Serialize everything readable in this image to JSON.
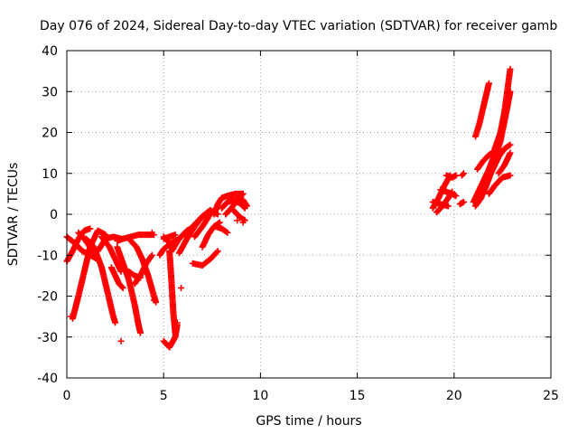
{
  "chart_data": {
    "type": "scatter",
    "title": "Day 076 of 2024, Sidereal Day-to-day VTEC variation (SDTVAR) for receiver gamb",
    "xlabel": "GPS time / hours",
    "ylabel": "SDTVAR / TECUs",
    "xlim": [
      0,
      25
    ],
    "ylim": [
      -40,
      40
    ],
    "xticks": [
      0,
      5,
      10,
      15,
      20,
      25
    ],
    "yticks": [
      -40,
      -30,
      -20,
      -10,
      0,
      10,
      20,
      30,
      40
    ],
    "grid": true,
    "marker": "+",
    "color": "#ff0000",
    "tracks": [
      [
        [
          0.0,
          -11.5
        ],
        [
          0.3,
          -9
        ],
        [
          0.6,
          -6
        ],
        [
          0.9,
          -4
        ],
        [
          1.2,
          -3.5
        ]
      ],
      [
        [
          0.0,
          -5.5
        ],
        [
          0.4,
          -7
        ],
        [
          0.8,
          -9
        ],
        [
          1.2,
          -10
        ],
        [
          1.6,
          -11
        ]
      ],
      [
        [
          0.3,
          -25.5
        ],
        [
          0.6,
          -20
        ],
        [
          0.9,
          -14
        ],
        [
          1.2,
          -8
        ],
        [
          1.6,
          -4
        ],
        [
          2.0,
          -5
        ]
      ],
      [
        [
          0.6,
          -4.5
        ],
        [
          0.9,
          -6
        ],
        [
          1.2,
          -8
        ],
        [
          1.5,
          -10.5
        ]
      ],
      [
        [
          1.0,
          -6
        ],
        [
          1.4,
          -8
        ],
        [
          1.8,
          -13
        ],
        [
          2.1,
          -19
        ],
        [
          2.4,
          -25
        ],
        [
          2.5,
          -26.5
        ]
      ],
      [
        [
          1.6,
          -9
        ],
        [
          2.0,
          -6
        ],
        [
          2.4,
          -5.5
        ],
        [
          2.8,
          -6
        ]
      ],
      [
        [
          1.8,
          -5.5
        ],
        [
          2.2,
          -8
        ],
        [
          2.5,
          -11
        ],
        [
          2.8,
          -14
        ]
      ],
      [
        [
          2.3,
          -13
        ],
        [
          2.5,
          -15
        ],
        [
          2.7,
          -17
        ],
        [
          2.9,
          -18
        ]
      ],
      [
        [
          2.6,
          -8
        ],
        [
          2.9,
          -12
        ],
        [
          3.2,
          -16
        ],
        [
          3.5,
          -22
        ],
        [
          3.7,
          -27
        ],
        [
          3.8,
          -29
        ]
      ],
      [
        [
          2.6,
          -6.5
        ],
        [
          2.9,
          -6
        ],
        [
          3.3,
          -5.5
        ],
        [
          3.7,
          -5
        ],
        [
          4.1,
          -5
        ],
        [
          4.5,
          -5
        ]
      ],
      [
        [
          3.2,
          -14
        ],
        [
          3.5,
          -15
        ],
        [
          3.8,
          -15.5
        ]
      ],
      [
        [
          3.3,
          -6.5
        ],
        [
          3.6,
          -8
        ],
        [
          3.9,
          -11
        ],
        [
          4.2,
          -15
        ],
        [
          4.5,
          -20
        ],
        [
          4.6,
          -21.5
        ]
      ],
      [
        [
          3.5,
          -17
        ],
        [
          3.8,
          -15
        ],
        [
          4.1,
          -12
        ],
        [
          4.4,
          -10
        ]
      ],
      [
        [
          4.8,
          -10
        ],
        [
          5.0,
          -8.5
        ],
        [
          5.4,
          -7
        ],
        [
          5.8,
          -6
        ]
      ],
      [
        [
          5.0,
          -6
        ],
        [
          5.3,
          -5.5
        ],
        [
          5.6,
          -5
        ]
      ],
      [
        [
          5.3,
          -9
        ],
        [
          5.4,
          -16
        ],
        [
          5.5,
          -24
        ],
        [
          5.6,
          -29
        ]
      ],
      [
        [
          5.0,
          -31
        ],
        [
          5.3,
          -32.5
        ],
        [
          5.6,
          -30
        ],
        [
          5.7,
          -27
        ]
      ],
      [
        [
          5.0,
          -5.5
        ],
        [
          5.3,
          -7
        ],
        [
          5.5,
          -8.5
        ]
      ],
      [
        [
          6.1,
          -5
        ],
        [
          6.5,
          -3
        ],
        [
          6.9,
          -1
        ],
        [
          7.3,
          0.5
        ]
      ],
      [
        [
          5.8,
          -9.5
        ],
        [
          6.2,
          -6
        ],
        [
          6.6,
          -3
        ],
        [
          7.0,
          -0.5
        ],
        [
          7.4,
          1
        ],
        [
          7.8,
          0
        ]
      ],
      [
        [
          5.4,
          -9
        ],
        [
          5.8,
          -6
        ],
        [
          6.2,
          -4
        ],
        [
          6.6,
          -3
        ]
      ],
      [
        [
          6.5,
          -12
        ],
        [
          7.0,
          -12.5
        ],
        [
          7.4,
          -11
        ],
        [
          7.8,
          -9
        ]
      ],
      [
        [
          7.0,
          -8
        ],
        [
          7.3,
          -5
        ],
        [
          7.6,
          -3
        ],
        [
          7.9,
          -2
        ]
      ],
      [
        [
          6.6,
          -5.5
        ],
        [
          7.0,
          -3
        ],
        [
          7.4,
          0
        ],
        [
          7.8,
          1.5
        ]
      ],
      [
        [
          7.7,
          -3
        ],
        [
          8.0,
          -3.5
        ],
        [
          8.3,
          -4.5
        ]
      ],
      [
        [
          7.6,
          0
        ],
        [
          7.8,
          2.5
        ],
        [
          8.0,
          4
        ],
        [
          8.3,
          4.5
        ],
        [
          8.7,
          5
        ],
        [
          9.1,
          5
        ]
      ],
      [
        [
          8.0,
          1.5
        ],
        [
          8.3,
          3
        ],
        [
          8.6,
          3.5
        ],
        [
          9.0,
          2.5
        ],
        [
          9.2,
          1.5
        ]
      ],
      [
        [
          8.2,
          0
        ],
        [
          8.5,
          1.5
        ],
        [
          8.8,
          3.5
        ],
        [
          9.1,
          5
        ]
      ],
      [
        [
          8.6,
          1
        ],
        [
          8.9,
          -0.5
        ],
        [
          9.2,
          -1.5
        ]
      ],
      [
        [
          8.8,
          4
        ],
        [
          9.1,
          3.5
        ],
        [
          9.3,
          2
        ]
      ],
      [
        [
          18.9,
          1.5
        ],
        [
          19.2,
          4
        ],
        [
          19.5,
          7
        ],
        [
          19.8,
          9.5
        ]
      ],
      [
        [
          18.9,
          3
        ],
        [
          19.3,
          2.5
        ],
        [
          19.7,
          2
        ]
      ],
      [
        [
          19.1,
          0.5
        ],
        [
          19.4,
          2
        ],
        [
          19.7,
          4
        ],
        [
          19.9,
          5.5
        ]
      ],
      [
        [
          19.3,
          6
        ],
        [
          19.6,
          5.5
        ],
        [
          19.9,
          5
        ],
        [
          20.1,
          4.5
        ]
      ],
      [
        [
          19.6,
          9.5
        ],
        [
          19.9,
          9
        ],
        [
          20.1,
          9.5
        ]
      ],
      [
        [
          20.4,
          9.5
        ],
        [
          20.5,
          10
        ]
      ],
      [
        [
          20.3,
          2.5
        ],
        [
          20.5,
          3
        ]
      ],
      [
        [
          21.0,
          3
        ],
        [
          21.4,
          7
        ],
        [
          21.8,
          11
        ],
        [
          22.2,
          16
        ],
        [
          22.6,
          24
        ],
        [
          22.9,
          30
        ]
      ],
      [
        [
          21.1,
          2
        ],
        [
          21.4,
          4
        ],
        [
          21.7,
          8
        ],
        [
          22.0,
          12
        ],
        [
          22.4,
          18
        ],
        [
          22.7,
          25
        ],
        [
          22.9,
          30
        ]
      ],
      [
        [
          21.1,
          19
        ],
        [
          21.3,
          22
        ],
        [
          21.5,
          26
        ],
        [
          21.7,
          30
        ],
        [
          21.8,
          32
        ]
      ],
      [
        [
          21.2,
          11
        ],
        [
          21.5,
          13
        ],
        [
          21.8,
          14.5
        ],
        [
          22.1,
          15.5
        ]
      ],
      [
        [
          21.5,
          5
        ],
        [
          21.9,
          10
        ],
        [
          22.3,
          14
        ],
        [
          22.6,
          16
        ],
        [
          22.9,
          17
        ]
      ],
      [
        [
          21.8,
          5
        ],
        [
          22.1,
          7
        ],
        [
          22.5,
          9
        ],
        [
          22.9,
          9.5
        ]
      ],
      [
        [
          22.1,
          16
        ],
        [
          22.4,
          20
        ],
        [
          22.6,
          25
        ],
        [
          22.8,
          32
        ],
        [
          22.9,
          35.5
        ]
      ],
      [
        [
          22.3,
          10
        ],
        [
          22.6,
          12
        ],
        [
          22.9,
          15
        ]
      ]
    ],
    "outliers": [
      [
        2.8,
        -31
      ],
      [
        5.9,
        -18
      ],
      [
        8.8,
        -1.5
      ],
      [
        4.5,
        -21
      ],
      [
        5.7,
        -26.5
      ],
      [
        4.4,
        -4.5
      ],
      [
        0.2,
        -25
      ],
      [
        9.1,
        -2
      ]
    ]
  }
}
